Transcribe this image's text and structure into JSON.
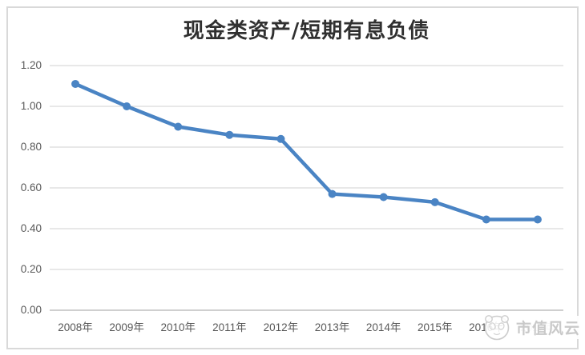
{
  "chart": {
    "title": "现金类资产/短期有息负债",
    "watermark_text": "市值风云"
  },
  "chart_data": {
    "type": "line",
    "categories": [
      "2008年",
      "2009年",
      "2010年",
      "2011年",
      "2012年",
      "2013年",
      "2014年",
      "2015年",
      "2016年",
      "2017年"
    ],
    "values": [
      1.11,
      1.0,
      0.9,
      0.86,
      0.84,
      0.57,
      0.555,
      0.53,
      0.445,
      0.445
    ],
    "title": "现金类资产/短期有息负债",
    "xlabel": "",
    "ylabel": "",
    "ylim": [
      0.0,
      1.2
    ],
    "yticks": [
      0.0,
      0.2,
      0.4,
      0.6,
      0.8,
      1.0,
      1.2
    ],
    "ytick_labels": [
      "0.00",
      "0.20",
      "0.40",
      "0.60",
      "0.80",
      "1.00",
      "1.20"
    ],
    "grid": true,
    "legend": false,
    "marker": "circle"
  },
  "style": {
    "line_color": "#4a84c4",
    "marker_color": "#4a84c4",
    "gridline_color": "#d9d9d9",
    "axis_line_color": "#bfbfbf",
    "tick_label_color": "#595959",
    "title_color": "#303030",
    "watermark_color": "#c9c9c9",
    "frame_border_color": "#d9d9d9"
  }
}
